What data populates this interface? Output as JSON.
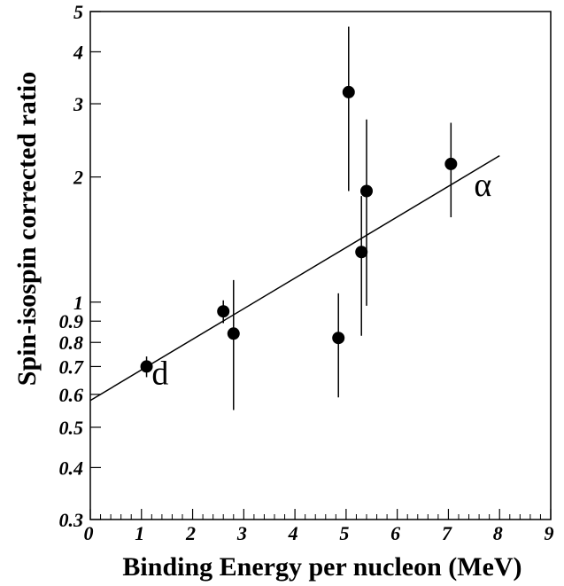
{
  "chart_data": {
    "type": "scatter",
    "xlabel": "Binding Energy per nucleon (MeV)",
    "ylabel": "Spin-isospin corrected ratio",
    "xlim": [
      0,
      9
    ],
    "ylim": [
      0.3,
      5
    ],
    "y_scale": "log",
    "grid": false,
    "x_ticks": [
      0,
      1,
      2,
      3,
      4,
      5,
      6,
      7,
      8,
      9
    ],
    "x_tick_labels": [
      "0",
      "1",
      "2",
      "3",
      "4",
      "5",
      "6",
      "7",
      "8",
      "9"
    ],
    "y_ticks": [
      0.3,
      0.4,
      0.5,
      0.6,
      0.7,
      0.8,
      0.9,
      1,
      2,
      3,
      4,
      5
    ],
    "y_tick_labels": [
      "0.3",
      "0.4",
      "0.5",
      "0.6",
      "0.7",
      "0.8",
      "0.9",
      "1",
      "2",
      "3",
      "4",
      "5"
    ],
    "points": [
      {
        "x": 1.1,
        "y": 0.7,
        "y_low": 0.66,
        "y_high": 0.74
      },
      {
        "x": 2.6,
        "y": 0.95,
        "y_low": 0.89,
        "y_high": 1.01
      },
      {
        "x": 2.8,
        "y": 0.84,
        "y_low": 0.55,
        "y_high": 1.13
      },
      {
        "x": 4.85,
        "y": 0.82,
        "y_low": 0.59,
        "y_high": 1.05
      },
      {
        "x": 5.05,
        "y": 3.2,
        "y_low": 1.85,
        "y_high": 4.6
      },
      {
        "x": 5.3,
        "y": 1.32,
        "y_low": 0.83,
        "y_high": 1.8
      },
      {
        "x": 5.4,
        "y": 1.85,
        "y_low": 0.98,
        "y_high": 2.75
      },
      {
        "x": 7.05,
        "y": 2.15,
        "y_low": 1.6,
        "y_high": 2.7
      }
    ],
    "fit_line": {
      "x": [
        0,
        8
      ],
      "y": [
        0.58,
        2.25
      ]
    },
    "annotations": [
      {
        "text": "d",
        "x": 1.2,
        "y": 0.635
      },
      {
        "text": "α",
        "x": 7.5,
        "y": 1.8
      }
    ]
  }
}
